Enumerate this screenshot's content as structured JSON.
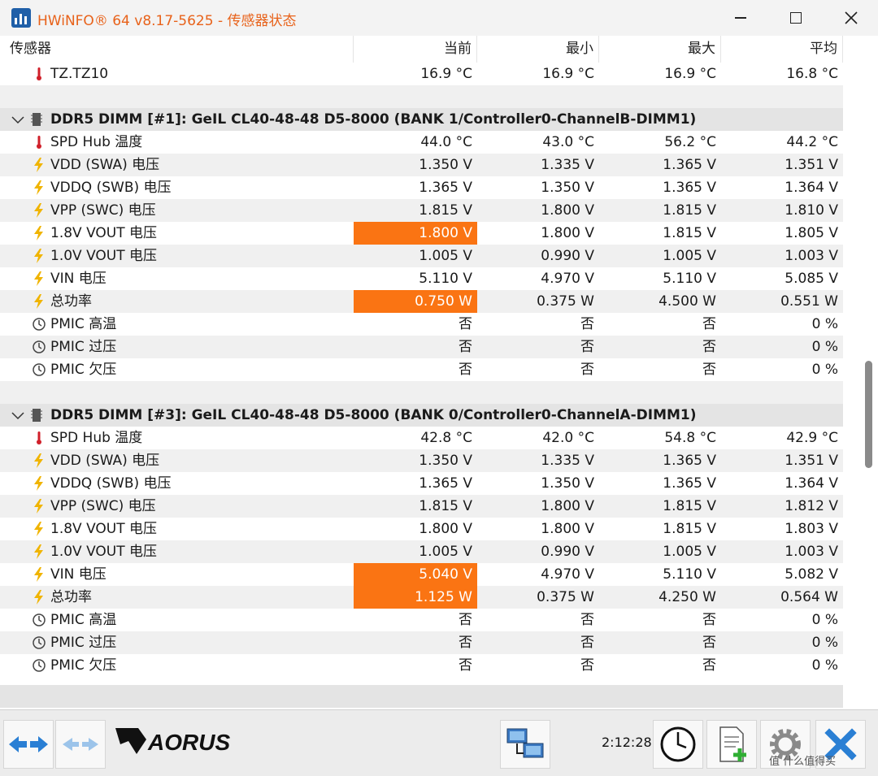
{
  "window": {
    "title": "HWiNFO® 64 v8.17-5625 - 传感器状态"
  },
  "columns": {
    "name": "传感器",
    "current": "当前",
    "min": "最小",
    "max": "最大",
    "avg": "平均"
  },
  "top_row": {
    "label": "TZ.TZ10",
    "current": "16.9 °C",
    "min": "16.9 °C",
    "max": "16.9 °C",
    "avg": "16.8 °C",
    "icon": "thermometer-icon"
  },
  "groups": [
    {
      "title": "DDR5 DIMM [#1]: GeIL CL40-48-48 D5-8000 (BANK 1/Controller0-ChannelB-DIMM1)",
      "rows": [
        {
          "icon": "thermometer-icon",
          "label": "SPD Hub 温度",
          "current": "44.0 °C",
          "min": "43.0 °C",
          "max": "56.2 °C",
          "avg": "44.2 °C",
          "highlight": false
        },
        {
          "icon": "bolt-icon",
          "label": "VDD (SWA) 电压",
          "current": "1.350 V",
          "min": "1.335 V",
          "max": "1.365 V",
          "avg": "1.351 V",
          "highlight": false
        },
        {
          "icon": "bolt-icon",
          "label": "VDDQ (SWB) 电压",
          "current": "1.365 V",
          "min": "1.350 V",
          "max": "1.365 V",
          "avg": "1.364 V",
          "highlight": false
        },
        {
          "icon": "bolt-icon",
          "label": "VPP (SWC) 电压",
          "current": "1.815 V",
          "min": "1.800 V",
          "max": "1.815 V",
          "avg": "1.810 V",
          "highlight": false
        },
        {
          "icon": "bolt-icon",
          "label": "1.8V VOUT 电压",
          "current": "1.800 V",
          "min": "1.800 V",
          "max": "1.815 V",
          "avg": "1.805 V",
          "highlight": true
        },
        {
          "icon": "bolt-icon",
          "label": "1.0V VOUT 电压",
          "current": "1.005 V",
          "min": "0.990 V",
          "max": "1.005 V",
          "avg": "1.003 V",
          "highlight": false
        },
        {
          "icon": "bolt-icon",
          "label": "VIN 电压",
          "current": "5.110 V",
          "min": "4.970 V",
          "max": "5.110 V",
          "avg": "5.085 V",
          "highlight": false
        },
        {
          "icon": "bolt-icon",
          "label": "总功率",
          "current": "0.750 W",
          "min": "0.375 W",
          "max": "4.500 W",
          "avg": "0.551 W",
          "highlight": true
        },
        {
          "icon": "clock-status-icon",
          "label": "PMIC 高温",
          "current": "否",
          "min": "否",
          "max": "否",
          "avg": "0 %",
          "highlight": false
        },
        {
          "icon": "clock-status-icon",
          "label": "PMIC 过压",
          "current": "否",
          "min": "否",
          "max": "否",
          "avg": "0 %",
          "highlight": false
        },
        {
          "icon": "clock-status-icon",
          "label": "PMIC 欠压",
          "current": "否",
          "min": "否",
          "max": "否",
          "avg": "0 %",
          "highlight": false
        }
      ]
    },
    {
      "title": "DDR5 DIMM [#3]: GeIL CL40-48-48 D5-8000 (BANK 0/Controller0-ChannelA-DIMM1)",
      "rows": [
        {
          "icon": "thermometer-icon",
          "label": "SPD Hub 温度",
          "current": "42.8 °C",
          "min": "42.0 °C",
          "max": "54.8 °C",
          "avg": "42.9 °C",
          "highlight": false
        },
        {
          "icon": "bolt-icon",
          "label": "VDD (SWA) 电压",
          "current": "1.350 V",
          "min": "1.335 V",
          "max": "1.365 V",
          "avg": "1.351 V",
          "highlight": false
        },
        {
          "icon": "bolt-icon",
          "label": "VDDQ (SWB) 电压",
          "current": "1.365 V",
          "min": "1.350 V",
          "max": "1.365 V",
          "avg": "1.364 V",
          "highlight": false
        },
        {
          "icon": "bolt-icon",
          "label": "VPP (SWC) 电压",
          "current": "1.815 V",
          "min": "1.800 V",
          "max": "1.815 V",
          "avg": "1.812 V",
          "highlight": false
        },
        {
          "icon": "bolt-icon",
          "label": "1.8V VOUT 电压",
          "current": "1.800 V",
          "min": "1.800 V",
          "max": "1.815 V",
          "avg": "1.803 V",
          "highlight": false
        },
        {
          "icon": "bolt-icon",
          "label": "1.0V VOUT 电压",
          "current": "1.005 V",
          "min": "0.990 V",
          "max": "1.005 V",
          "avg": "1.003 V",
          "highlight": false
        },
        {
          "icon": "bolt-icon",
          "label": "VIN 电压",
          "current": "5.040 V",
          "min": "4.970 V",
          "max": "5.110 V",
          "avg": "5.082 V",
          "highlight": true
        },
        {
          "icon": "bolt-icon",
          "label": "总功率",
          "current": "1.125 W",
          "min": "0.375 W",
          "max": "4.250 W",
          "avg": "0.564 W",
          "highlight": true
        },
        {
          "icon": "clock-status-icon",
          "label": "PMIC 高温",
          "current": "否",
          "min": "否",
          "max": "否",
          "avg": "0 %",
          "highlight": false
        },
        {
          "icon": "clock-status-icon",
          "label": "PMIC 过压",
          "current": "否",
          "min": "否",
          "max": "否",
          "avg": "0 %",
          "highlight": false
        },
        {
          "icon": "clock-status-icon",
          "label": "PMIC 欠压",
          "current": "否",
          "min": "否",
          "max": "否",
          "avg": "0 %",
          "highlight": false
        }
      ]
    }
  ],
  "toolbar": {
    "elapsed_time": "2:12:28",
    "logo_text": "AORUS",
    "watermark": "值 什么值得买"
  },
  "colors": {
    "highlight": "#fa7413",
    "title": "#e8621a",
    "bolt": "#f0b400",
    "thermometer": "#d0202a"
  }
}
